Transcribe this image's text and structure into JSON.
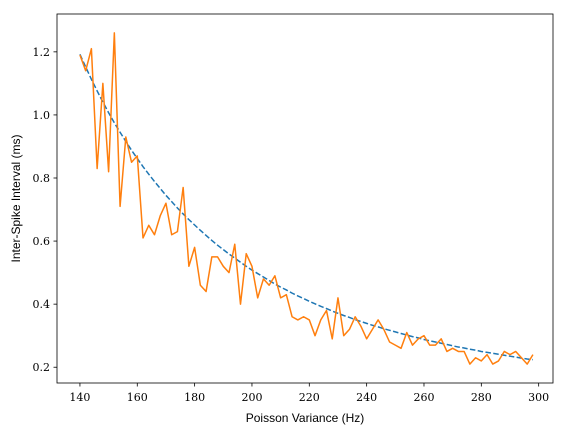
{
  "chart_data": {
    "type": "line",
    "title": "",
    "xlabel": "Poisson Variance (Hz)",
    "ylabel": "Inter-Spike Interval (ms)",
    "xlim": [
      132,
      305
    ],
    "ylim": [
      0.15,
      1.32
    ],
    "xticks": [
      140,
      160,
      180,
      200,
      220,
      240,
      260,
      280,
      300
    ],
    "yticks": [
      0.2,
      0.4,
      0.6,
      0.8,
      1.0,
      1.2
    ],
    "grid": false,
    "legend": "none",
    "series": [
      {
        "style": "dashed",
        "color": "#1f77b4",
        "x": [
          140,
          142,
          144,
          146,
          148,
          150,
          152,
          154,
          156,
          158,
          160,
          162,
          164,
          166,
          168,
          170,
          172,
          174,
          176,
          178,
          180,
          182,
          184,
          186,
          188,
          190,
          192,
          194,
          196,
          198,
          200,
          202,
          204,
          206,
          208,
          210,
          212,
          214,
          216,
          218,
          220,
          222,
          224,
          226,
          228,
          230,
          232,
          234,
          236,
          238,
          240,
          242,
          244,
          246,
          248,
          250,
          252,
          254,
          256,
          258,
          260,
          262,
          264,
          266,
          268,
          270,
          272,
          274,
          276,
          278,
          280,
          282,
          284,
          286,
          288,
          290,
          292,
          294,
          296,
          298
        ],
        "y": [
          1.192,
          1.152,
          1.113,
          1.076,
          1.041,
          1.007,
          0.975,
          0.945,
          0.916,
          0.888,
          0.862,
          0.836,
          0.812,
          0.789,
          0.767,
          0.745,
          0.725,
          0.705,
          0.686,
          0.668,
          0.651,
          0.634,
          0.618,
          0.602,
          0.587,
          0.573,
          0.559,
          0.546,
          0.533,
          0.52,
          0.508,
          0.497,
          0.486,
          0.475,
          0.464,
          0.454,
          0.445,
          0.435,
          0.426,
          0.418,
          0.409,
          0.401,
          0.393,
          0.386,
          0.378,
          0.371,
          0.364,
          0.358,
          0.351,
          0.345,
          0.339,
          0.333,
          0.328,
          0.322,
          0.317,
          0.312,
          0.307,
          0.302,
          0.297,
          0.293,
          0.288,
          0.284,
          0.28,
          0.276,
          0.272,
          0.268,
          0.264,
          0.261,
          0.257,
          0.254,
          0.25,
          0.247,
          0.244,
          0.241,
          0.238,
          0.235,
          0.232,
          0.229,
          0.226,
          0.224
        ]
      },
      {
        "style": "solid",
        "color": "#ff7f0e",
        "x": [
          140,
          142,
          144,
          146,
          148,
          150,
          152,
          154,
          156,
          158,
          160,
          162,
          164,
          166,
          168,
          170,
          172,
          174,
          176,
          178,
          180,
          182,
          184,
          186,
          188,
          190,
          192,
          194,
          196,
          198,
          200,
          202,
          204,
          206,
          208,
          210,
          212,
          214,
          216,
          218,
          220,
          222,
          224,
          226,
          228,
          230,
          232,
          234,
          236,
          238,
          240,
          242,
          244,
          246,
          248,
          250,
          252,
          254,
          256,
          258,
          260,
          262,
          264,
          266,
          268,
          270,
          272,
          274,
          276,
          278,
          280,
          282,
          284,
          286,
          288,
          290,
          292,
          294,
          296,
          298
        ],
        "y": [
          1.19,
          1.14,
          1.21,
          0.83,
          1.1,
          0.82,
          1.26,
          0.71,
          0.93,
          0.85,
          0.87,
          0.61,
          0.65,
          0.62,
          0.68,
          0.72,
          0.62,
          0.63,
          0.77,
          0.52,
          0.58,
          0.46,
          0.44,
          0.55,
          0.55,
          0.52,
          0.5,
          0.59,
          0.4,
          0.56,
          0.52,
          0.42,
          0.48,
          0.46,
          0.49,
          0.42,
          0.43,
          0.36,
          0.35,
          0.36,
          0.35,
          0.3,
          0.35,
          0.38,
          0.29,
          0.42,
          0.3,
          0.32,
          0.36,
          0.33,
          0.29,
          0.32,
          0.35,
          0.32,
          0.28,
          0.27,
          0.26,
          0.31,
          0.27,
          0.29,
          0.3,
          0.27,
          0.27,
          0.29,
          0.25,
          0.26,
          0.25,
          0.25,
          0.21,
          0.23,
          0.22,
          0.24,
          0.21,
          0.22,
          0.25,
          0.24,
          0.25,
          0.23,
          0.21,
          0.24
        ]
      }
    ]
  }
}
